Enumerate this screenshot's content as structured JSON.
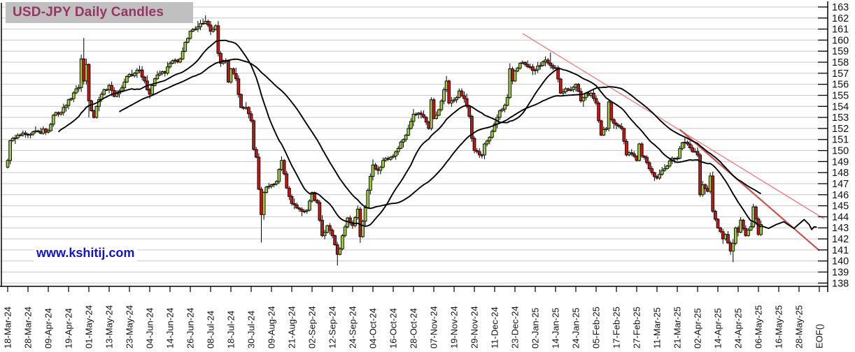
{
  "title": "USD-JPY Daily Candles",
  "title_style": {
    "bg": "#c0c0c0",
    "color": "#993366"
  },
  "watermark": {
    "text": "www.kshitij.com",
    "color": "#1414cc"
  },
  "chart_data": {
    "type": "candlestick",
    "title": "USD-JPY Daily Candles",
    "xlabel": "",
    "ylabel": "",
    "grid": true,
    "legend": false,
    "y_axis": {
      "min": 138,
      "max": 163,
      "step": 1,
      "side": "right"
    },
    "x_ticks": [
      "18-Mar-24",
      "28-Mar-24",
      "09-Apr-24",
      "19-Apr-24",
      "01-May-24",
      "13-May-24",
      "23-May-24",
      "04-Jun-24",
      "14-Jun-24",
      "26-Jun-24",
      "08-Jul-24",
      "18-Jul-24",
      "30-Jul-24",
      "09-Aug-24",
      "21-Aug-24",
      "02-Sep-24",
      "12-Sep-24",
      "24-Sep-24",
      "04-Oct-24",
      "16-Oct-24",
      "28-Oct-24",
      "07-Nov-24",
      "19-Nov-24",
      "29-Nov-24",
      "11-Dec-24",
      "23-Dec-24",
      "02-Jan-25",
      "14-Jan-25",
      "24-Jan-25",
      "05-Feb-25",
      "17-Feb-25",
      "27-Feb-25",
      "11-Mar-25",
      "21-Mar-25",
      "02-Apr-25",
      "14-Apr-25",
      "24-Apr-25",
      "06-May-25",
      "16-May-25",
      "28-May-25",
      "EOF()"
    ],
    "trading_days_per_tick": 8,
    "candles_end_day": 297,
    "close_anchors": [
      [
        0,
        149.1
      ],
      [
        1,
        150.9
      ],
      [
        4,
        151.4
      ],
      [
        8,
        151.4
      ],
      [
        12,
        151.7
      ],
      [
        16,
        151.8
      ],
      [
        18,
        153.2
      ],
      [
        20,
        153.3
      ],
      [
        24,
        154.6
      ],
      [
        28,
        155.7
      ],
      [
        29,
        158.3
      ],
      [
        30,
        156.3
      ],
      [
        31,
        157.8
      ],
      [
        32,
        154.5
      ],
      [
        33,
        153.6
      ],
      [
        34,
        153.0
      ],
      [
        35,
        154.0
      ],
      [
        38,
        155.5
      ],
      [
        40,
        155.9
      ],
      [
        42,
        154.9
      ],
      [
        44,
        155.4
      ],
      [
        46,
        156.2
      ],
      [
        48,
        156.9
      ],
      [
        50,
        157.0
      ],
      [
        52,
        157.3
      ],
      [
        54,
        156.3
      ],
      [
        56,
        155.1
      ],
      [
        58,
        156.5
      ],
      [
        60,
        157.0
      ],
      [
        62,
        157.0
      ],
      [
        64,
        157.9
      ],
      [
        68,
        158.3
      ],
      [
        70,
        159.8
      ],
      [
        72,
        160.8
      ],
      [
        74,
        161.0
      ],
      [
        76,
        161.5
      ],
      [
        78,
        161.7
      ],
      [
        80,
        160.8
      ],
      [
        82,
        161.3
      ],
      [
        83,
        158.8
      ],
      [
        84,
        157.9
      ],
      [
        86,
        158.1
      ],
      [
        87,
        156.2
      ],
      [
        88,
        157.4
      ],
      [
        90,
        156.5
      ],
      [
        92,
        153.9
      ],
      [
        94,
        153.9
      ],
      [
        96,
        152.7
      ],
      [
        97,
        150.1
      ],
      [
        98,
        149.4
      ],
      [
        99,
        146.5
      ],
      [
        100,
        144.2
      ],
      [
        101,
        146.2
      ],
      [
        102,
        146.7
      ],
      [
        104,
        146.9
      ],
      [
        106,
        147.2
      ],
      [
        108,
        149.1
      ],
      [
        110,
        146.6
      ],
      [
        112,
        145.2
      ],
      [
        114,
        144.8
      ],
      [
        116,
        144.5
      ],
      [
        118,
        144.6
      ],
      [
        120,
        146.2
      ],
      [
        121,
        145.5
      ],
      [
        122,
        145.3
      ],
      [
        124,
        142.3
      ],
      [
        126,
        143.2
      ],
      [
        128,
        142.3
      ],
      [
        130,
        140.6
      ],
      [
        131,
        141.1
      ],
      [
        132,
        142.3
      ],
      [
        134,
        143.9
      ],
      [
        136,
        143.2
      ],
      [
        138,
        144.7
      ],
      [
        139,
        142.2
      ],
      [
        140,
        143.6
      ],
      [
        142,
        146.4
      ],
      [
        144,
        148.7
      ],
      [
        146,
        148.2
      ],
      [
        148,
        149.1
      ],
      [
        150,
        149.2
      ],
      [
        152,
        149.5
      ],
      [
        154,
        150.2
      ],
      [
        156,
        151.0
      ],
      [
        158,
        152.0
      ],
      [
        160,
        153.3
      ],
      [
        162,
        153.4
      ],
      [
        164,
        153.0
      ],
      [
        166,
        152.0
      ],
      [
        167,
        154.6
      ],
      [
        168,
        152.9
      ],
      [
        170,
        153.7
      ],
      [
        172,
        155.5
      ],
      [
        173,
        156.3
      ],
      [
        174,
        154.3
      ],
      [
        176,
        154.6
      ],
      [
        178,
        155.4
      ],
      [
        180,
        154.7
      ],
      [
        182,
        153.1
      ],
      [
        183,
        151.1
      ],
      [
        184,
        150.0
      ],
      [
        186,
        149.6
      ],
      [
        187,
        149.6
      ],
      [
        188,
        150.6
      ],
      [
        190,
        151.2
      ],
      [
        192,
        152.4
      ],
      [
        194,
        153.6
      ],
      [
        196,
        154.1
      ],
      [
        197,
        154.8
      ],
      [
        198,
        157.4
      ],
      [
        199,
        156.3
      ],
      [
        200,
        157.2
      ],
      [
        202,
        157.9
      ],
      [
        204,
        157.8
      ],
      [
        208,
        157.3
      ],
      [
        210,
        157.7
      ],
      [
        212,
        158.2
      ],
      [
        214,
        157.7
      ],
      [
        216,
        157.5
      ],
      [
        218,
        155.2
      ],
      [
        220,
        155.6
      ],
      [
        222,
        155.5
      ],
      [
        224,
        156.0
      ],
      [
        226,
        154.5
      ],
      [
        228,
        155.2
      ],
      [
        230,
        155.2
      ],
      [
        232,
        154.3
      ],
      [
        234,
        151.4
      ],
      [
        236,
        152.0
      ],
      [
        237,
        154.4
      ],
      [
        238,
        152.8
      ],
      [
        240,
        152.3
      ],
      [
        242,
        152.0
      ],
      [
        244,
        149.6
      ],
      [
        246,
        149.7
      ],
      [
        248,
        149.1
      ],
      [
        249,
        150.6
      ],
      [
        250,
        149.5
      ],
      [
        252,
        148.9
      ],
      [
        254,
        148.0
      ],
      [
        256,
        147.5
      ],
      [
        258,
        148.2
      ],
      [
        260,
        148.6
      ],
      [
        262,
        149.3
      ],
      [
        264,
        149.3
      ],
      [
        266,
        150.7
      ],
      [
        268,
        150.6
      ],
      [
        270,
        149.9
      ],
      [
        272,
        149.6
      ],
      [
        273,
        146.0
      ],
      [
        274,
        146.9
      ],
      [
        276,
        146.3
      ],
      [
        277,
        147.7
      ],
      [
        278,
        144.5
      ],
      [
        280,
        143.0
      ],
      [
        282,
        142.0
      ],
      [
        283,
        142.4
      ],
      [
        285,
        140.9
      ],
      [
        286,
        141.6
      ],
      [
        287,
        143.0
      ],
      [
        288,
        142.6
      ],
      [
        289,
        143.7
      ],
      [
        291,
        142.3
      ],
      [
        293,
        143.1
      ],
      [
        294,
        144.9
      ],
      [
        296,
        142.4
      ],
      [
        297,
        143.3
      ]
    ],
    "wick_overrides": [
      {
        "day": 30,
        "high": 160.2
      },
      {
        "day": 32,
        "low": 153.0
      },
      {
        "day": 77,
        "high": 161.95
      },
      {
        "day": 100,
        "low": 141.68
      },
      {
        "day": 130,
        "low": 139.58
      },
      {
        "day": 139,
        "low": 141.65
      },
      {
        "day": 173,
        "high": 156.75
      },
      {
        "day": 198,
        "high": 157.9
      },
      {
        "day": 214,
        "high": 158.87
      },
      {
        "day": 286,
        "low": 139.89
      }
    ],
    "moving_average_periods": [
      21,
      45
    ],
    "forecast_line": [
      [
        297,
        143.2
      ],
      [
        300,
        142.95
      ],
      [
        303,
        143.3
      ],
      [
        306,
        143.55
      ],
      [
        308,
        143.25
      ],
      [
        310,
        142.95
      ],
      [
        312,
        143.35
      ],
      [
        314,
        143.75
      ],
      [
        316,
        143.3
      ],
      [
        317,
        142.85
      ],
      [
        318,
        143.1
      ],
      [
        319,
        143.05
      ]
    ],
    "trendlines": [
      {
        "from_day": 203,
        "from_price": 160.6,
        "to_day": 322,
        "to_price": 143.8,
        "color": "#f28080",
        "width": 1.4
      },
      {
        "from_day": 265,
        "from_price": 151.9,
        "to_day": 320,
        "to_price": 140.95,
        "color": "#c9524e",
        "width": 2.2
      }
    ],
    "colors": {
      "up_candle": "#9ccb3b",
      "down_candle": "#cc1515",
      "candle_border": "#000000",
      "wick": "#000000",
      "ma_line": "#000000",
      "grid": "#c9c9c9",
      "axis": "#000000",
      "label": "#111111"
    }
  }
}
